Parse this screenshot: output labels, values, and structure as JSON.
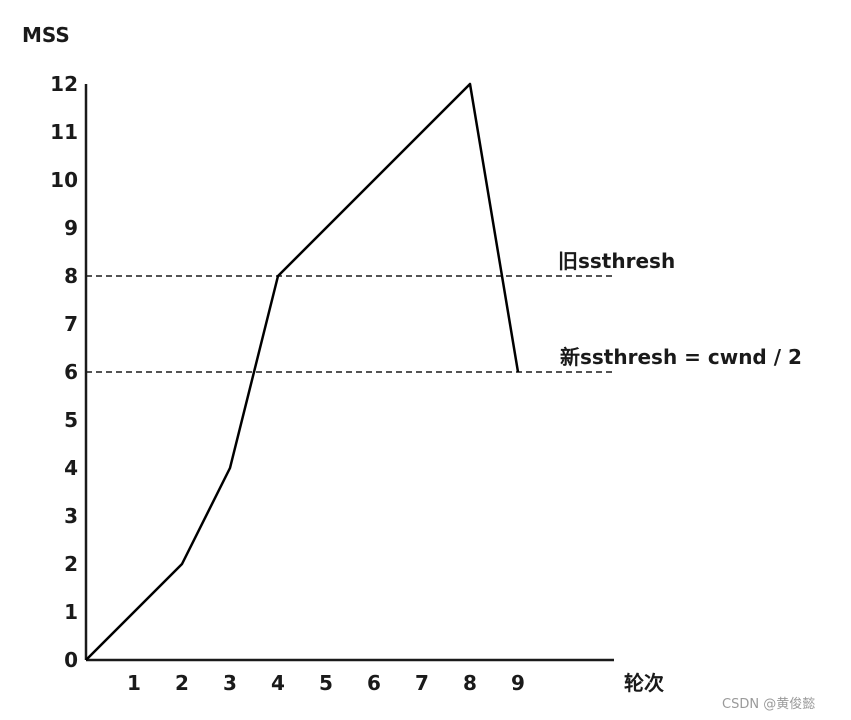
{
  "chart_data": {
    "type": "line",
    "ylabel": "MSS",
    "xlabel": "轮次",
    "x": [
      0,
      1,
      2,
      3,
      4,
      5,
      6,
      7,
      8,
      9
    ],
    "xticks": [
      "1",
      "2",
      "3",
      "4",
      "5",
      "6",
      "7",
      "8",
      "9"
    ],
    "yticks": [
      "0",
      "1",
      "2",
      "3",
      "4",
      "5",
      "6",
      "7",
      "8",
      "9",
      "10",
      "11",
      "12"
    ],
    "series": [
      {
        "values": [
          0,
          1,
          2,
          4,
          8,
          9,
          10,
          11,
          12,
          6
        ]
      }
    ],
    "xlim": [
      0,
      11
    ],
    "ylim": [
      0,
      12
    ],
    "reference_lines": [
      {
        "y": 8,
        "label": "旧ssthresh"
      },
      {
        "y": 6,
        "label": "新ssthresh = cwnd / 2"
      }
    ],
    "grid": false,
    "line_color": "#000000"
  },
  "watermark": "CSDN @黄俊懿"
}
